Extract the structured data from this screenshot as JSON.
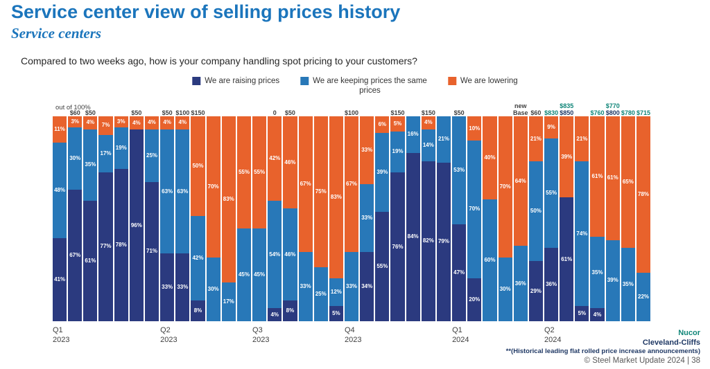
{
  "slide": {
    "title": "Service center view of selling prices history",
    "subtitle": "Service centers",
    "question": "Compared to two weeks ago, how is your company handling spot pricing to your customers?",
    "axis_note": "out of 100%",
    "footer": {
      "nucor": "Nucor",
      "cliffs": "Cleveland-Cliffs",
      "footnote": "**(Historical leading flat rolled price increase announcements)",
      "copyright": "© Steel Market Update 2024  |  38"
    }
  },
  "legend": [
    {
      "label": "We are raising prices",
      "color": "#2B3A7F"
    },
    {
      "label": "We are keeping prices the same",
      "label2": "prices",
      "color": "#2878B8"
    },
    {
      "label": "We are lowering",
      "color": "#E8622C"
    }
  ],
  "colors": {
    "series": {
      "raising": "#2B3A7F",
      "keeping": "#2878B8",
      "lowering": "#E8622C"
    },
    "price": {
      "dark": "#3F3F3F",
      "teal": "#0F8578",
      "navy": "#1F3864"
    },
    "title": "#1B75BC"
  },
  "chart_data": {
    "type": "bar",
    "stacked": true,
    "unit": "percent",
    "title": "Service center view of selling prices history",
    "ylabel": "out of 100%",
    "ylim": [
      0,
      100
    ],
    "grid": false,
    "legend_position": "top",
    "series_names": [
      "We are raising prices",
      "We are keeping prices the same prices",
      "We are lowering"
    ],
    "categories": [
      "Q1 2023",
      "Q2 2023",
      "Q3 2023",
      "Q4 2023",
      "Q1 2024",
      "Q2 2024"
    ],
    "bars": [
      {
        "r": 41,
        "k": 48,
        "l": 11,
        "q": [
          "Q1",
          "2023"
        ]
      },
      {
        "r": 67,
        "k": 30,
        "l": 3,
        "p": [
          [
            "$60",
            "dark"
          ]
        ]
      },
      {
        "r": 61,
        "k": 35,
        "l": 4,
        "p": [
          [
            "$50",
            "dark"
          ]
        ]
      },
      {
        "r": 77,
        "k": 17,
        "l": 7
      },
      {
        "r": 78,
        "k": 19,
        "l": 3
      },
      {
        "r": 96,
        "k": 0,
        "l": 4,
        "p": [
          [
            "$50",
            "dark"
          ]
        ]
      },
      {
        "r": 71,
        "k": 25,
        "l": 4
      },
      {
        "r": 33,
        "k": 63,
        "l": 4,
        "p": [
          [
            "$50",
            "dark"
          ]
        ],
        "q": [
          "Q2",
          "2023"
        ]
      },
      {
        "r": 33,
        "k": 63,
        "l": 4,
        "p": [
          [
            "$100",
            "dark"
          ]
        ]
      },
      {
        "r": 8,
        "k": 42,
        "l": 50,
        "p": [
          [
            "$150",
            "dark"
          ]
        ]
      },
      {
        "r": 0,
        "k": 30,
        "l": 70
      },
      {
        "r": 0,
        "k": 17,
        "l": 83
      },
      {
        "r": 0,
        "k": 45,
        "l": 55
      },
      {
        "r": 0,
        "k": 45,
        "l": 55,
        "q": [
          "Q3",
          "2023"
        ]
      },
      {
        "r": 4,
        "k": 54,
        "l": 42,
        "p": [
          [
            "0",
            "dark"
          ]
        ]
      },
      {
        "r": 8,
        "k": 46,
        "l": 46,
        "p": [
          [
            "$50",
            "dark"
          ]
        ]
      },
      {
        "r": 0,
        "k": 33,
        "l": 67
      },
      {
        "r": 0,
        "k": 25,
        "l": 75
      },
      {
        "r": 5,
        "k": 12,
        "l": 83
      },
      {
        "r": 0,
        "k": 33,
        "l": 67,
        "p": [
          [
            "$100",
            "dark"
          ]
        ],
        "q": [
          "Q4",
          "2023"
        ]
      },
      {
        "r": 34,
        "k": 33,
        "l": 33
      },
      {
        "r": 55,
        "k": 39,
        "l": 6
      },
      {
        "r": 76,
        "k": 19,
        "l": 5,
        "p": [
          [
            "$150",
            "dark"
          ]
        ]
      },
      {
        "r": 84,
        "k": 16,
        "l": 0
      },
      {
        "r": 82,
        "k": 14,
        "l": 4,
        "p": [
          [
            "$150",
            "dark"
          ]
        ]
      },
      {
        "r": 79,
        "k": 21,
        "l": 0
      },
      {
        "r": 47,
        "k": 53,
        "l": 0,
        "p": [
          [
            "$50",
            "dark"
          ]
        ],
        "q": [
          "Q1",
          "2024"
        ]
      },
      {
        "r": 20,
        "k": 70,
        "l": 10
      },
      {
        "r": 0,
        "k": 60,
        "l": 40
      },
      {
        "r": 0,
        "k": 30,
        "l": 70
      },
      {
        "r": 0,
        "k": 36,
        "l": 64,
        "p": [
          [
            "new",
            "dark"
          ],
          [
            "Base",
            "dark"
          ]
        ]
      },
      {
        "r": 29,
        "k": 50,
        "l": 21,
        "p": [
          [
            "$60",
            "dark"
          ]
        ]
      },
      {
        "r": 36,
        "k": 55,
        "l": 9,
        "p": [
          [
            "$830",
            "teal"
          ]
        ],
        "q": [
          "Q2",
          "2024"
        ]
      },
      {
        "r": 61,
        "k": 0,
        "l": 39,
        "p": [
          [
            "$835",
            "teal"
          ],
          [
            "$850",
            "navy"
          ]
        ]
      },
      {
        "r": 5,
        "k": 74,
        "l": 21
      },
      {
        "r": 4,
        "k": 35,
        "l": 61,
        "p": [
          [
            "$760",
            "teal"
          ]
        ]
      },
      {
        "r": 0,
        "k": 39,
        "l": 61,
        "p": [
          [
            "$770",
            "teal"
          ],
          [
            "$800",
            "navy"
          ]
        ]
      },
      {
        "r": 0,
        "k": 35,
        "l": 65,
        "p": [
          [
            "$780",
            "teal"
          ]
        ]
      },
      {
        "r": 0,
        "k": 22,
        "l": 78,
        "p": [
          [
            "$715",
            "teal"
          ]
        ]
      }
    ]
  }
}
